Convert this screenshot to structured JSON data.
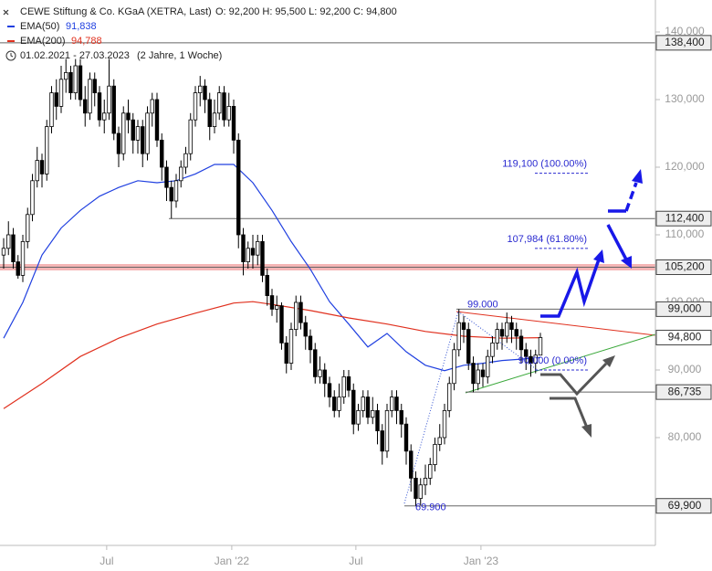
{
  "chart_data": {
    "type": "candlestick",
    "header": {
      "title": "CEWE Stiftung & Co. KGaA (XETRA, Last)",
      "ohlc": "O: 92,200   H: 95,500   L: 92,200   C: 94,800",
      "range": "01.02.2021 - 27.03.2023",
      "span": "(2 Jahre, 1 Woche)"
    },
    "xlim": [
      -0.76,
      136
    ],
    "xticks": [
      {
        "value": 21.5,
        "label": "Jul"
      },
      {
        "value": 47.6,
        "label": "Jan '22"
      },
      {
        "value": 73.5,
        "label": "Jul"
      },
      {
        "value": 99.6,
        "label": "Jan '23"
      }
    ],
    "ylim": [
      64.05,
      144.73
    ],
    "yticks": [
      {
        "value": 80,
        "label": "80,000"
      },
      {
        "value": 90,
        "label": "90,000"
      },
      {
        "value": 100,
        "label": "100,000"
      },
      {
        "value": 110,
        "label": "110,000"
      },
      {
        "value": 120,
        "label": "120,000"
      },
      {
        "value": 130,
        "label": "130,000"
      },
      {
        "value": 140,
        "label": "140,000"
      }
    ],
    "up_color": "#ffffff",
    "down_color": "#000000",
    "open": [
      107,
      108,
      110,
      106,
      104,
      109,
      113,
      118,
      121,
      119,
      126,
      131,
      129,
      133,
      134,
      131,
      135,
      130,
      128,
      133,
      131,
      127,
      128,
      132,
      125,
      122,
      128,
      127,
      124,
      126,
      122,
      128,
      130,
      124,
      120,
      117,
      115,
      118,
      120,
      122,
      127,
      131,
      132,
      130,
      126,
      128,
      131,
      127,
      129,
      124,
      110,
      106,
      108,
      107,
      109,
      104,
      101,
      99,
      99.5,
      94,
      91,
      96,
      100,
      97,
      95,
      93,
      89,
      90,
      88,
      86,
      84,
      86,
      89,
      87,
      82,
      84,
      86,
      83,
      84,
      81,
      78,
      84,
      86,
      84,
      82,
      78,
      74,
      71,
      73,
      74,
      76,
      79,
      80,
      84,
      88,
      93,
      97,
      96,
      91,
      88,
      90,
      89,
      92,
      94,
      96,
      95,
      97,
      96,
      95,
      93,
      92,
      91,
      92.2
    ],
    "high": [
      109.5,
      112,
      111,
      107,
      110,
      114,
      119,
      123,
      122,
      127,
      132,
      133,
      135,
      136,
      135,
      136,
      136,
      132,
      134,
      134,
      132,
      130,
      136,
      133,
      126,
      129,
      130,
      128,
      127,
      127,
      129,
      131,
      131,
      125,
      121,
      118,
      119,
      121,
      123,
      128,
      132,
      133.5,
      133,
      131,
      130,
      132,
      132,
      131,
      130,
      125,
      111,
      109,
      110,
      110,
      110,
      105,
      102,
      101,
      100,
      95,
      97,
      101,
      101,
      98,
      96,
      94,
      92,
      91,
      89,
      87,
      88,
      90,
      90,
      88,
      85,
      87,
      87,
      86,
      85,
      82,
      85,
      87,
      87,
      85,
      83,
      79,
      75,
      74,
      76,
      77,
      80,
      82,
      85,
      89,
      94,
      99,
      98,
      97,
      92,
      91,
      91,
      93,
      95,
      97,
      97,
      98.5,
      98,
      97,
      96,
      94,
      93,
      93,
      95.5
    ],
    "low": [
      105,
      107,
      105,
      103.5,
      103,
      108,
      112,
      117,
      117,
      118,
      125,
      127,
      128,
      131,
      130,
      130,
      129,
      126,
      127,
      129,
      126,
      125,
      127,
      124,
      120,
      121,
      125,
      122,
      122,
      120,
      121,
      126,
      123,
      118,
      115,
      112.4,
      114,
      117,
      119,
      121,
      126,
      129,
      128,
      124,
      125,
      127,
      126,
      126,
      122,
      108,
      104,
      105,
      105,
      105.5,
      103,
      99.5,
      98,
      97,
      93,
      89.5,
      90,
      95,
      96,
      93,
      91,
      88,
      88,
      86,
      84.5,
      83,
      83,
      85,
      86,
      80.5,
      81,
      83,
      82,
      82,
      79,
      76,
      77,
      83,
      82,
      80,
      76,
      72,
      69.9,
      70,
      71.5,
      73,
      75,
      78,
      79,
      83,
      87,
      92,
      94,
      90,
      86.7,
      87,
      87.5,
      88,
      91,
      93,
      93,
      94,
      94,
      93,
      91,
      90,
      89,
      89.5,
      92.2
    ],
    "close": [
      108,
      110,
      106,
      104,
      109,
      113,
      118,
      121,
      119,
      126,
      131,
      129,
      133,
      134,
      131,
      135,
      130,
      128,
      133,
      131,
      127,
      128,
      132,
      125,
      122,
      128,
      127,
      124,
      126,
      122,
      128,
      130,
      124,
      120,
      117,
      115,
      118,
      120,
      122,
      127,
      131,
      132,
      130,
      126,
      128,
      131,
      127,
      129,
      124,
      110,
      106,
      108,
      107,
      109,
      104,
      101,
      99,
      99.5,
      94,
      91,
      96,
      100,
      97,
      95,
      93,
      89,
      90,
      88,
      86,
      84,
      86,
      89,
      87,
      82,
      84,
      86,
      83,
      84,
      81,
      78,
      84,
      86,
      84,
      82,
      78,
      74,
      71,
      73,
      74,
      76,
      79,
      80,
      84,
      88,
      93,
      97,
      96,
      91,
      88,
      90,
      89,
      92,
      94,
      96,
      95,
      97,
      96,
      95,
      93,
      92,
      91,
      92.2,
      94.8
    ],
    "series": [
      {
        "name": "EMA(50)",
        "last_label": "91,838",
        "color": "#2040e0",
        "x": [
          0,
          4,
          8,
          12,
          16,
          20,
          24,
          28,
          32,
          36,
          40,
          44,
          48,
          52,
          56,
          60,
          64,
          68,
          72,
          76,
          80,
          84,
          88,
          92,
          96,
          100,
          104,
          108,
          112
        ],
        "values": [
          94.7,
          100,
          107,
          111,
          113.6,
          115.7,
          117,
          118,
          117.7,
          118,
          119,
          120.4,
          120.4,
          117.7,
          113.6,
          109,
          104.9,
          100.1,
          96.8,
          93.4,
          95.4,
          92.7,
          90.7,
          89.9,
          90.7,
          91,
          91.4,
          91.6,
          91.838
        ]
      },
      {
        "name": "EMA(200)",
        "last_label": "94,788",
        "color": "#e0301e",
        "x": [
          0,
          8,
          16,
          24,
          32,
          40,
          48,
          52,
          56,
          64,
          72,
          80,
          88,
          96,
          104,
          112
        ],
        "values": [
          84.3,
          88,
          92,
          94.7,
          96.8,
          98.4,
          99.9,
          100.1,
          99.7,
          98.8,
          97.7,
          96.8,
          95.7,
          95,
          94.7,
          94.788
        ]
      }
    ],
    "levels": [
      {
        "value": 138.4,
        "label": "138,400"
      },
      {
        "value": 112.4,
        "label": "112,400"
      },
      {
        "value": 105.2,
        "label": "105,200",
        "band_color": "#f5b5b5"
      },
      {
        "value": 99,
        "label": "99,000"
      },
      {
        "value": 86.735,
        "label": "86,735"
      },
      {
        "value": 69.9,
        "label": "69,900"
      }
    ],
    "last_price": {
      "value": 94.8,
      "label": "94,800"
    },
    "fib_levels": [
      {
        "value": 119.1,
        "label": "119,100 (100.00%)"
      },
      {
        "value": 107.984,
        "label": "107,984 (61.80%)"
      },
      {
        "value": 90,
        "label": "90,000 (0.00%)"
      }
    ],
    "point_labels": [
      {
        "value": 99,
        "label": "99.000"
      },
      {
        "value": 69.9,
        "label": "69.900"
      }
    ]
  }
}
